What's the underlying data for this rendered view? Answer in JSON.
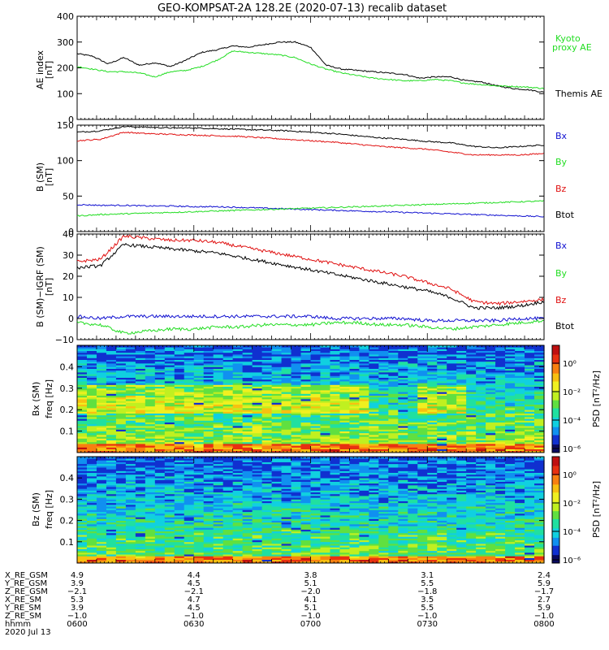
{
  "title": "GEO-KOMPSAT-2A 128.2E (2020-07-13) recalib dataset",
  "colors": {
    "black": "#000000",
    "green": "#22dd22",
    "red": "#e01010",
    "blue": "#1010d0"
  },
  "chart_data": [
    {
      "type": "line",
      "id": "ae",
      "ylabel_line1": "AE index",
      "ylabel_line2": "[nT]",
      "ylim": [
        0,
        400
      ],
      "yticks": [
        "0",
        "100",
        "200",
        "300",
        "400"
      ],
      "legend": [
        {
          "label": "Kyoto",
          "color": "green"
        },
        {
          "label": "proxy AE",
          "color": "green"
        },
        {
          "label": "Themis AE",
          "color": "black"
        }
      ],
      "x": [
        0,
        2,
        4,
        6,
        8,
        10,
        12,
        14,
        16,
        18,
        20,
        22,
        24,
        26,
        28,
        30,
        32,
        34,
        36,
        38,
        40,
        42,
        44,
        46,
        48,
        50,
        52,
        54,
        56,
        58,
        60
      ],
      "series": [
        {
          "name": "Themis AE",
          "color": "black",
          "values": [
            255,
            245,
            215,
            240,
            210,
            220,
            205,
            230,
            260,
            270,
            285,
            280,
            290,
            300,
            300,
            280,
            210,
            195,
            190,
            185,
            180,
            175,
            160,
            165,
            165,
            150,
            145,
            130,
            120,
            115,
            105
          ]
        },
        {
          "name": "Kyoto proxy AE",
          "color": "green",
          "values": [
            205,
            195,
            185,
            185,
            180,
            165,
            185,
            190,
            205,
            230,
            265,
            260,
            255,
            250,
            240,
            215,
            195,
            180,
            170,
            160,
            155,
            150,
            150,
            155,
            150,
            140,
            135,
            130,
            128,
            125,
            120
          ]
        }
      ]
    },
    {
      "type": "line",
      "id": "bsm",
      "ylabel_line1": "B (SM)",
      "ylabel_line2": "[nT]",
      "ylim": [
        0,
        150
      ],
      "yticks": [
        "0",
        "50",
        "100",
        "150"
      ],
      "legend": [
        {
          "label": "Bx",
          "color": "blue"
        },
        {
          "label": "By",
          "color": "green"
        },
        {
          "label": "Bz",
          "color": "red"
        },
        {
          "label": "Btot",
          "color": "black"
        }
      ],
      "x": [
        0,
        3,
        6,
        9,
        12,
        15,
        18,
        21,
        24,
        27,
        30,
        33,
        36,
        39,
        42,
        45,
        48,
        51,
        54,
        57,
        60
      ],
      "series": [
        {
          "name": "Btot",
          "color": "black",
          "values": [
            140,
            142,
            148,
            147,
            146,
            146,
            145,
            144,
            143,
            142,
            140,
            138,
            135,
            132,
            130,
            127,
            125,
            120,
            118,
            120,
            122
          ]
        },
        {
          "name": "Bz",
          "color": "red",
          "values": [
            128,
            130,
            140,
            138,
            137,
            136,
            135,
            134,
            132,
            130,
            128,
            126,
            123,
            120,
            118,
            116,
            112,
            108,
            108,
            108,
            110
          ]
        },
        {
          "name": "Bx",
          "color": "blue",
          "values": [
            38,
            37,
            37,
            36,
            36,
            35,
            35,
            34,
            33,
            32,
            31,
            30,
            29,
            28,
            27,
            26,
            25,
            24,
            23,
            22,
            21
          ]
        },
        {
          "name": "By",
          "color": "green",
          "values": [
            22,
            24,
            25,
            26,
            27,
            28,
            29,
            30,
            31,
            32,
            33,
            34,
            35,
            36,
            37,
            38,
            39,
            40,
            41,
            42,
            43
          ]
        }
      ]
    },
    {
      "type": "line",
      "id": "bdiff",
      "ylabel_line1": "B (SM)−IGRF (SM)",
      "ylabel_line2": "[nT]",
      "ylim": [
        -10,
        40
      ],
      "yticks": [
        "−10",
        "0",
        "10",
        "20",
        "30",
        "40"
      ],
      "legend": [
        {
          "label": "Bx",
          "color": "blue"
        },
        {
          "label": "By",
          "color": "green"
        },
        {
          "label": "Bz",
          "color": "red"
        },
        {
          "label": "Btot",
          "color": "black"
        }
      ],
      "x": [
        0,
        3,
        6,
        9,
        12,
        15,
        18,
        21,
        24,
        27,
        30,
        33,
        36,
        39,
        42,
        45,
        48,
        51,
        54,
        57,
        60
      ],
      "series": [
        {
          "name": "Bz",
          "color": "red",
          "values": [
            27,
            28,
            39,
            38,
            37,
            37,
            36,
            34,
            32,
            30,
            28,
            26,
            24,
            22,
            20,
            17,
            14,
            8,
            7,
            8,
            9
          ]
        },
        {
          "name": "Btot",
          "color": "black",
          "values": [
            24,
            25,
            35,
            34,
            33,
            32,
            31,
            29,
            27,
            25,
            23,
            21,
            19,
            17,
            15,
            13,
            10,
            5,
            5,
            6,
            8
          ]
        },
        {
          "name": "Bx",
          "color": "blue",
          "values": [
            1,
            0,
            1,
            1,
            1,
            1,
            1,
            1,
            1,
            1,
            1,
            0,
            0,
            0,
            0,
            -1,
            -1,
            -1,
            -1,
            0,
            0
          ]
        },
        {
          "name": "By",
          "color": "green",
          "values": [
            -2,
            -3,
            -7,
            -6,
            -5,
            -5,
            -4,
            -4,
            -3,
            -3,
            -3,
            -2,
            -2,
            -3,
            -3,
            -4,
            -5,
            -4,
            -3,
            -2,
            -1
          ]
        }
      ]
    },
    {
      "type": "heatmap",
      "id": "bx_psd",
      "ylabel_line1": "Bx (SM)",
      "ylabel_line2": "freq [Hz]",
      "ylim": [
        0,
        0.5
      ],
      "yticks": [
        "0.1",
        "0.2",
        "0.3",
        "0.4"
      ],
      "colorbar_label": "PSD [nT²/Hz]",
      "colorbar_ticks": [
        "10⁰",
        "10⁻²",
        "10⁻⁴",
        "10⁻⁶"
      ]
    },
    {
      "type": "heatmap",
      "id": "bz_psd",
      "ylabel_line1": "Bz (SM)",
      "ylabel_line2": "freq [Hz]",
      "ylim": [
        0,
        0.5
      ],
      "yticks": [
        "0.1",
        "0.2",
        "0.3",
        "0.4"
      ],
      "colorbar_label": "PSD [nT²/Hz]",
      "colorbar_ticks": [
        "10⁰",
        "10⁻²",
        "10⁻⁴",
        "10⁻⁶"
      ]
    }
  ],
  "ephemeris": {
    "labels": [
      "X_RE_GSM",
      "Y_RE_GSM",
      "Z_RE_GSM",
      "X_RE_SM",
      "Y_RE_SM",
      "Z_RE_SM",
      "hhmm",
      "2020 Jul 13"
    ],
    "columns": [
      [
        "4.9",
        "3.9",
        "−2.1",
        "5.3",
        "3.9",
        "−1.0",
        "0600"
      ],
      [
        "4.4",
        "4.5",
        "−2.1",
        "4.7",
        "4.5",
        "−1.0",
        "0630"
      ],
      [
        "3.8",
        "5.1",
        "−2.0",
        "4.1",
        "5.1",
        "−1.0",
        "0700"
      ],
      [
        "3.1",
        "5.5",
        "−1.8",
        "3.5",
        "5.5",
        "−1.0",
        "0730"
      ],
      [
        "2.4",
        "5.9",
        "−1.7",
        "2.7",
        "5.9",
        "−1.0",
        "0800"
      ]
    ]
  }
}
